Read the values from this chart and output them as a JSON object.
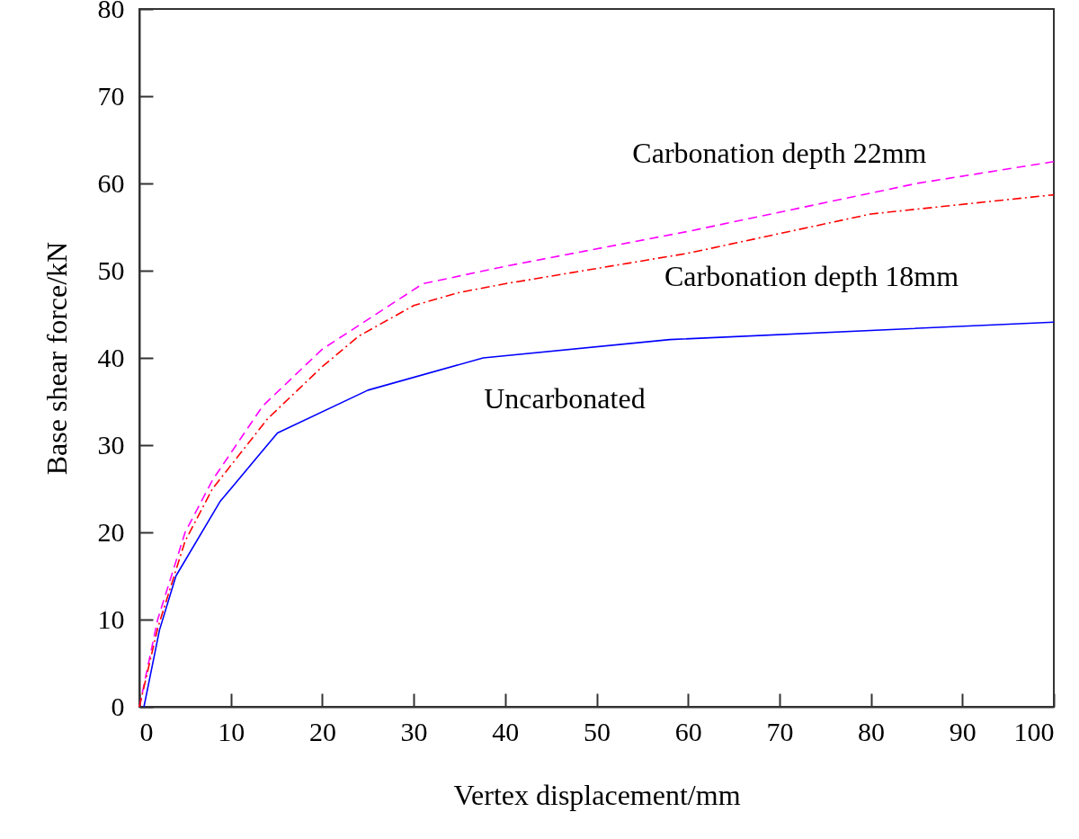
{
  "chart_data": {
    "type": "line",
    "xlabel": "Vertex displacement/mm",
    "ylabel": "Base shear force/kN",
    "xlim": [
      0,
      100
    ],
    "ylim": [
      0,
      80
    ],
    "xticks": [
      0,
      10,
      20,
      30,
      40,
      50,
      60,
      70,
      80,
      90,
      100
    ],
    "yticks": [
      0,
      10,
      20,
      30,
      40,
      50,
      60,
      70,
      80
    ],
    "grid": false,
    "legend": false,
    "marker": "none",
    "series": [
      {
        "name": "Carbonation depth  22mm",
        "color": "#ff00ff",
        "line_style": "dashed",
        "x": [
          0,
          2,
          5,
          8,
          13.5,
          20,
          31,
          40,
          60,
          85,
          100
        ],
        "values": [
          0,
          10,
          20,
          26,
          34.5,
          41,
          48.5,
          50.5,
          54.5,
          60,
          62.5
        ]
      },
      {
        "name": "Carbonation depth 18mm",
        "color": "#ff0000",
        "line_style": "dashdot",
        "x": [
          0,
          2,
          5,
          8,
          14,
          20,
          24,
          30,
          35,
          40,
          60,
          80,
          100
        ],
        "values": [
          0,
          9,
          19,
          25,
          33,
          39,
          42.5,
          46,
          47.5,
          48.5,
          52,
          56.5,
          58.7
        ]
      },
      {
        "name": "Uncarbonated",
        "color": "#0000ff",
        "line_style": "solid",
        "x": [
          0.5,
          2.2,
          4,
          8.8,
          15.1,
          25,
          37.6,
          58,
          100
        ],
        "values": [
          0,
          8.8,
          15,
          23.5,
          31.4,
          36.3,
          40,
          42.1,
          44.1
        ]
      }
    ]
  }
}
